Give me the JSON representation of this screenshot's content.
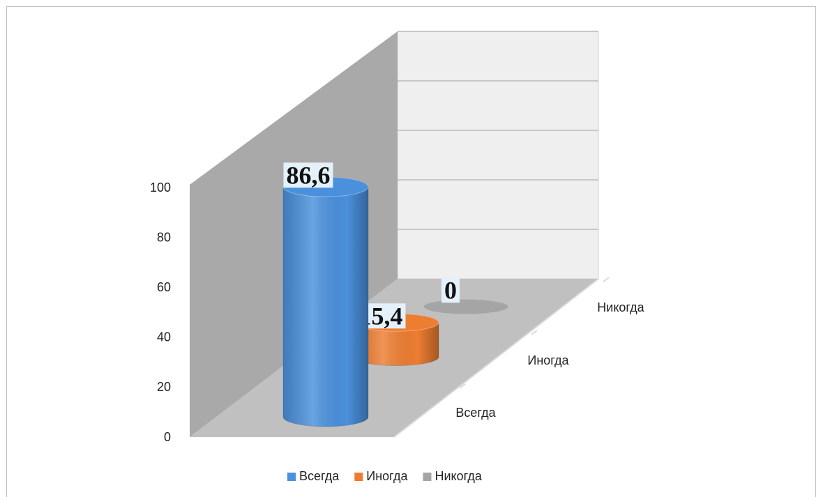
{
  "chart_data": {
    "type": "bar3d-cylinder",
    "categories": [
      "Всегда",
      "Иногда",
      "Никогда"
    ],
    "values": [
      86.6,
      15.4,
      0
    ],
    "value_labels": [
      "86,6",
      "15,4",
      "0"
    ],
    "colors": [
      "#4a90dc",
      "#ed7d31",
      "#a5a5a5"
    ],
    "ylim": [
      0,
      100
    ],
    "yticks": [
      0,
      20,
      40,
      60,
      80,
      100
    ],
    "grid": true,
    "legend": "bottom"
  }
}
